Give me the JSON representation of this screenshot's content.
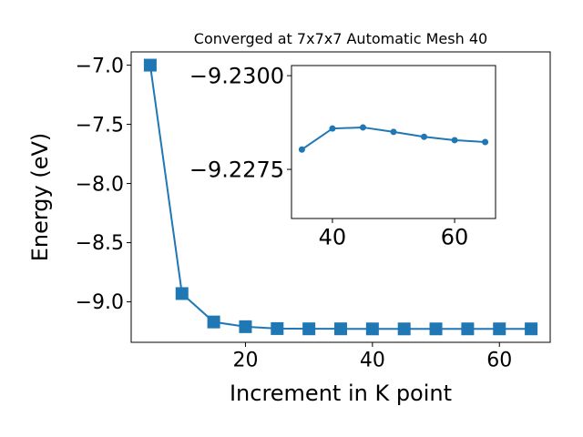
{
  "chart_data": [
    {
      "type": "line",
      "title": "Converged at 7x7x7 Automatic Mesh 40",
      "x_label": "Increment in K point",
      "y_label": "Energy (eV)",
      "x": [
        5,
        10,
        15,
        20,
        25,
        30,
        35,
        40,
        45,
        50,
        55,
        60,
        65
      ],
      "series": [
        {
          "color": "#1f77b4",
          "marker": "square",
          "values": [
            -7.0,
            -8.93,
            -9.17,
            -9.21,
            -9.226,
            -9.228,
            -9.22803,
            -9.22859,
            -9.22862,
            -9.2285,
            -9.22837,
            -9.22828,
            -9.22823
          ]
        }
      ],
      "xlim": [
        2,
        68
      ],
      "ylim": [
        -9.342,
        -6.888
      ],
      "xticks": [
        20,
        40,
        60
      ],
      "yticks": [
        {
          "value": -9.0,
          "label": "−9.0"
        },
        {
          "value": -8.5,
          "label": "−8.5"
        },
        {
          "value": -8.0,
          "label": "−8.0"
        },
        {
          "value": -7.5,
          "label": "−7.5"
        },
        {
          "value": -7.0,
          "label": "−7.0"
        }
      ]
    },
    {
      "type": "line",
      "x": [
        35,
        40,
        45,
        50,
        55,
        60,
        65
      ],
      "series": [
        {
          "color": "#1f77b4",
          "marker": "circle",
          "values": [
            -9.22803,
            -9.22859,
            -9.22862,
            -9.2285,
            -9.22837,
            -9.22828,
            -9.22823
          ]
        }
      ],
      "xlim": [
        33.3,
        66.7
      ],
      "ylim": [
        -9.22619,
        -9.23027
      ],
      "y_inverted": true,
      "xticks": [
        40,
        60
      ],
      "yticks": [
        {
          "value": -9.23,
          "label": "−9.2300"
        },
        {
          "value": -9.2275,
          "label": "−9.2275"
        }
      ]
    }
  ]
}
